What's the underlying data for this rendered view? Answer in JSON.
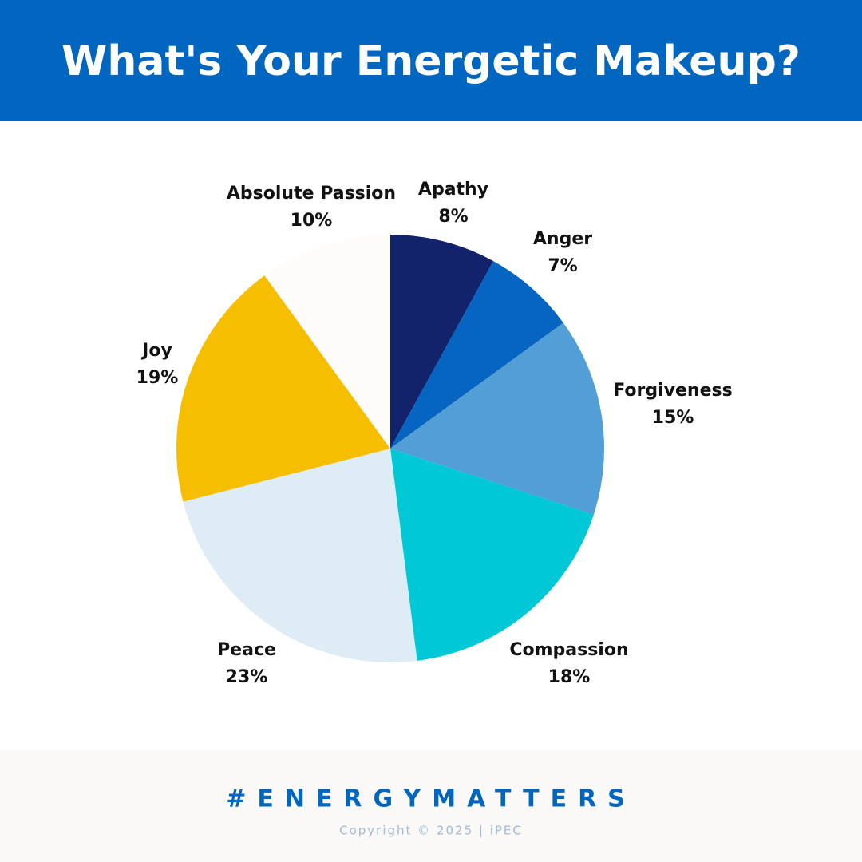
{
  "chart_data": {
    "type": "pie",
    "title": "What's Your Energetic Makeup?",
    "categories": [
      "Apathy",
      "Anger",
      "Forgiveness",
      "Compassion",
      "Peace",
      "Joy",
      "Absolute Passion"
    ],
    "values": [
      8,
      7,
      15,
      18,
      23,
      19,
      10
    ],
    "value_labels": [
      "8%",
      "7%",
      "15%",
      "18%",
      "23%",
      "19%",
      "10%"
    ],
    "colors": [
      "#12236b",
      "#0565c0",
      "#519fd6",
      "#00c8d6",
      "#deedf5",
      "#f5be00",
      "#fdfcfa"
    ]
  },
  "footer": {
    "hashtag": "#ENERGYMATTERS",
    "copyright": "Copyright © 2025 | iPEC"
  }
}
